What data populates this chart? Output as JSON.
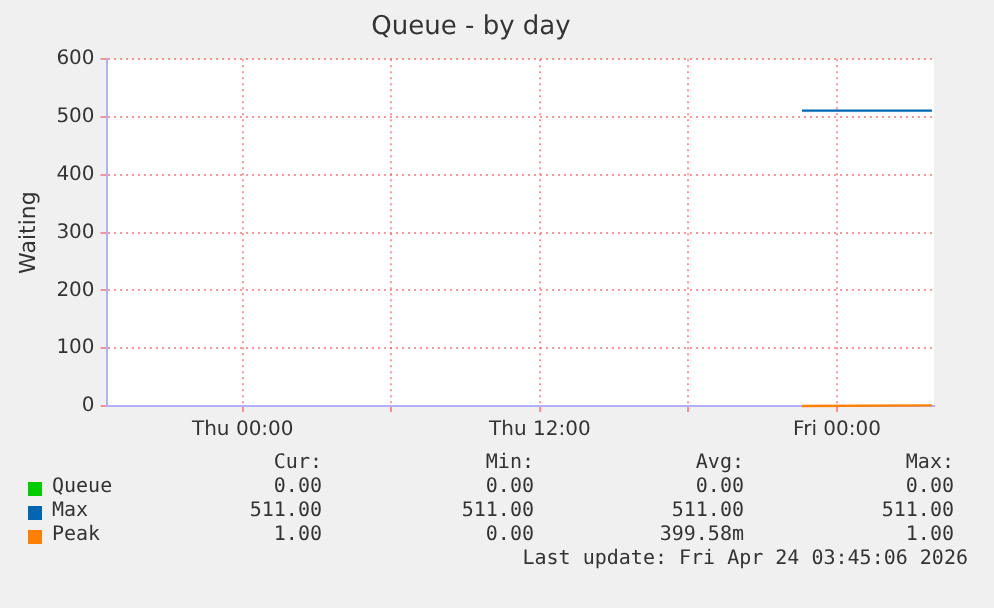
{
  "chart_data": {
    "type": "line",
    "title": "Queue - by day",
    "ylabel": "Waiting",
    "xlim": [
      "2026-04-22T18:30",
      "2026-04-24T03:55"
    ],
    "xticks": [
      {
        "value": "2026-04-23T00:00",
        "label": "Thu 00:00"
      },
      {
        "value": "2026-04-23T06:00",
        "label": null
      },
      {
        "value": "2026-04-23T12:00",
        "label": "Thu 12:00"
      },
      {
        "value": "2026-04-23T18:00",
        "label": null
      },
      {
        "value": "2026-04-24T00:00",
        "label": "Fri 00:00"
      }
    ],
    "ylim": [
      0,
      600
    ],
    "yticks": [
      0,
      100,
      200,
      300,
      400,
      500,
      600
    ],
    "grid": true,
    "legend": "bottom",
    "marker": "none",
    "x": [
      "2026-04-23T22:35",
      "2026-04-24T03:50"
    ],
    "series": [
      {
        "name": "Queue",
        "color": "#00cc00",
        "values": [
          null,
          null
        ]
      },
      {
        "name": "Max",
        "color": "#0066b3",
        "values": [
          511,
          511
        ]
      },
      {
        "name": "Peak",
        "color": "#ff8000",
        "values": [
          0,
          1
        ]
      }
    ],
    "annotations": [
      "Cur:",
      "Min:",
      "Avg:",
      "Max:",
      "0.00",
      "0.00",
      "0.00",
      "0.00",
      "511.00",
      "511.00",
      "511.00",
      "511.00",
      "1.00",
      "0.00",
      "399.58m",
      "1.00",
      "Last update: Fri Apr 24 03:45:06 2026"
    ]
  }
}
